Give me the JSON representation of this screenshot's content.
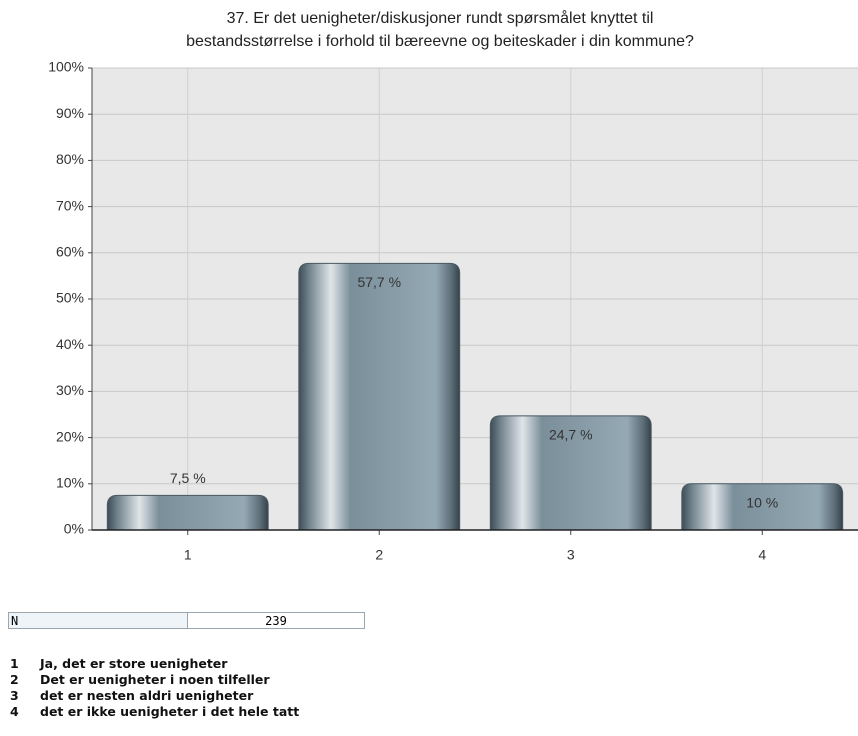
{
  "chart_data": {
    "type": "bar",
    "title": [
      "37. Er det uenigheter/diskusjoner rundt spørsmålet knyttet til",
      "bestandsstørrelse i forhold til bæreevne og beiteskader i din kommune?"
    ],
    "categories": [
      "1",
      "2",
      "3",
      "4"
    ],
    "values": [
      7.5,
      57.7,
      24.7,
      10
    ],
    "value_labels": [
      "7,5 %",
      "57,7 %",
      "24,7 %",
      "10 %"
    ],
    "ylim": [
      0,
      100
    ],
    "yticks": [
      {
        "value": 0,
        "label": "0%"
      },
      {
        "value": 10,
        "label": "10%"
      },
      {
        "value": 20,
        "label": "20%"
      },
      {
        "value": 30,
        "label": "30%"
      },
      {
        "value": 40,
        "label": "40%"
      },
      {
        "value": 50,
        "label": "50%"
      },
      {
        "value": 60,
        "label": "60%"
      },
      {
        "value": 70,
        "label": "70%"
      },
      {
        "value": 80,
        "label": "80%"
      },
      {
        "value": 90,
        "label": "90%"
      },
      {
        "value": 100,
        "label": "100%"
      }
    ],
    "grid": true,
    "color": "#7f95a2"
  },
  "n": {
    "label": "N",
    "value": 239
  },
  "legend": [
    {
      "key": "1",
      "text": "Ja, det er store uenigheter"
    },
    {
      "key": "2",
      "text": "Det er uenigheter i noen tilfeller"
    },
    {
      "key": "3",
      "text": "det er nesten aldri uenigheter"
    },
    {
      "key": "4",
      "text": "det er ikke uenigheter i det hele tatt"
    }
  ]
}
